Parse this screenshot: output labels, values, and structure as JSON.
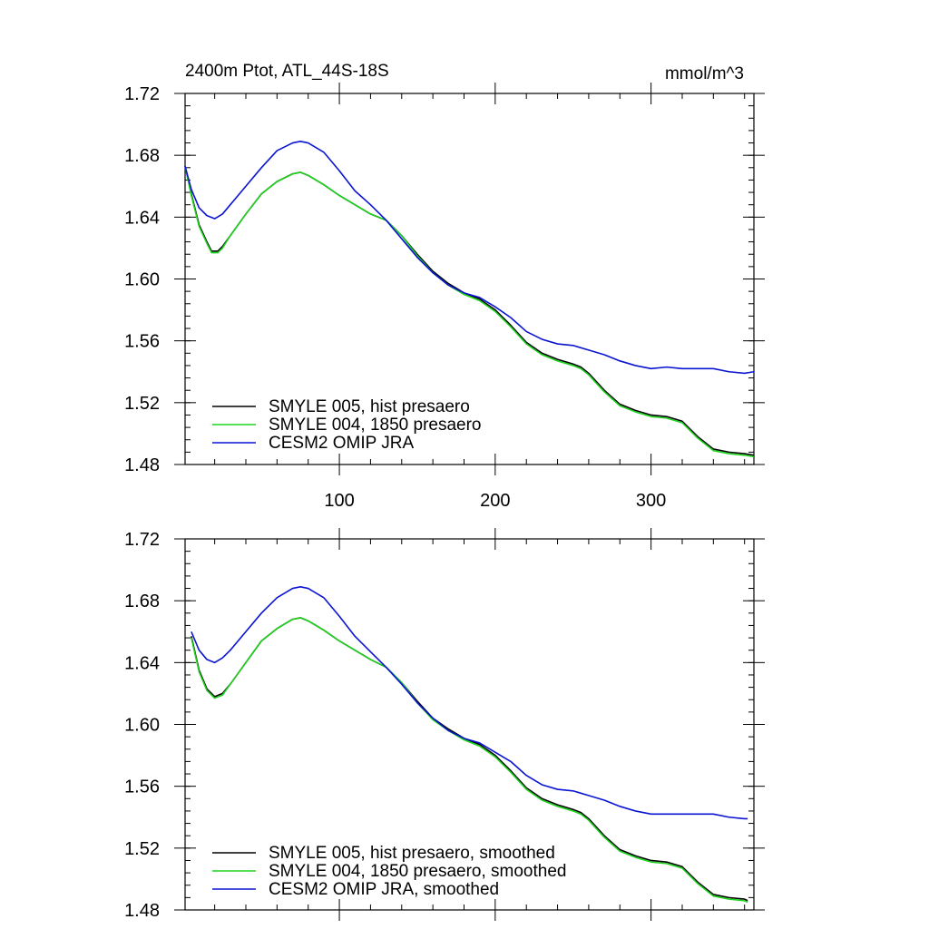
{
  "figure": {
    "title_left": "2400m Ptot, ATL_44S-18S",
    "title_right": "mmol/m^3"
  },
  "chart_data": [
    {
      "type": "line",
      "xlim": [
        1,
        366
      ],
      "ylim": [
        1.48,
        1.72
      ],
      "x_ticks": [
        100,
        200,
        300
      ],
      "x_tick_labels": [
        "100",
        "200",
        "300"
      ],
      "y_ticks": [
        1.48,
        1.52,
        1.56,
        1.6,
        1.64,
        1.68,
        1.72
      ],
      "y_tick_labels": [
        "1.48",
        "1.52",
        "1.56",
        "1.60",
        "1.64",
        "1.68",
        "1.72"
      ],
      "grid": false,
      "legend": "bottom-left",
      "series": [
        {
          "name": "SMYLE 005, hist presaero",
          "color": "#000000",
          "x": [
            1,
            5,
            10,
            15,
            18,
            22,
            25,
            30,
            40,
            50,
            60,
            70,
            75,
            80,
            90,
            100,
            110,
            120,
            130,
            140,
            150,
            160,
            170,
            180,
            190,
            200,
            210,
            220,
            230,
            240,
            250,
            255,
            260,
            270,
            280,
            290,
            300,
            310,
            320,
            330,
            340,
            350,
            360,
            366
          ],
          "y": [
            1.673,
            1.655,
            1.635,
            1.624,
            1.618,
            1.618,
            1.621,
            1.628,
            1.642,
            1.655,
            1.663,
            1.668,
            1.669,
            1.667,
            1.661,
            1.654,
            1.648,
            1.642,
            1.638,
            1.628,
            1.616,
            1.605,
            1.597,
            1.591,
            1.587,
            1.58,
            1.57,
            1.559,
            1.552,
            1.548,
            1.545,
            1.543,
            1.539,
            1.528,
            1.519,
            1.515,
            1.512,
            1.511,
            1.508,
            1.498,
            1.49,
            1.488,
            1.487,
            1.486
          ]
        },
        {
          "name": "SMYLE 004, 1850 presaero",
          "color": "#1ed31e",
          "x": [
            1,
            5,
            10,
            15,
            18,
            22,
            25,
            30,
            40,
            50,
            60,
            70,
            75,
            80,
            90,
            100,
            110,
            120,
            130,
            140,
            150,
            160,
            170,
            180,
            190,
            200,
            210,
            220,
            230,
            240,
            250,
            255,
            260,
            270,
            280,
            290,
            300,
            310,
            320,
            330,
            340,
            350,
            360,
            366
          ],
          "y": [
            1.673,
            1.654,
            1.634,
            1.623,
            1.617,
            1.617,
            1.62,
            1.628,
            1.642,
            1.655,
            1.663,
            1.668,
            1.669,
            1.667,
            1.661,
            1.654,
            1.648,
            1.642,
            1.638,
            1.628,
            1.615,
            1.604,
            1.596,
            1.59,
            1.586,
            1.579,
            1.569,
            1.558,
            1.551,
            1.547,
            1.544,
            1.542,
            1.538,
            1.527,
            1.518,
            1.514,
            1.511,
            1.51,
            1.507,
            1.497,
            1.489,
            1.487,
            1.486,
            1.485
          ]
        },
        {
          "name": "CESM2 OMIP JRA",
          "color": "#0a14d2",
          "x": [
            1,
            5,
            10,
            15,
            20,
            25,
            30,
            40,
            50,
            60,
            70,
            75,
            80,
            90,
            100,
            110,
            120,
            130,
            140,
            150,
            160,
            170,
            180,
            190,
            200,
            210,
            220,
            230,
            240,
            250,
            260,
            270,
            280,
            290,
            300,
            310,
            320,
            330,
            340,
            350,
            360,
            366
          ],
          "y": [
            1.673,
            1.658,
            1.646,
            1.641,
            1.639,
            1.642,
            1.648,
            1.66,
            1.672,
            1.683,
            1.688,
            1.689,
            1.688,
            1.682,
            1.67,
            1.657,
            1.648,
            1.638,
            1.626,
            1.614,
            1.604,
            1.596,
            1.591,
            1.588,
            1.582,
            1.575,
            1.566,
            1.561,
            1.558,
            1.557,
            1.554,
            1.551,
            1.547,
            1.544,
            1.542,
            1.543,
            1.542,
            1.542,
            1.542,
            1.54,
            1.539,
            1.54
          ]
        }
      ]
    },
    {
      "type": "line",
      "xlim": [
        1,
        366
      ],
      "ylim": [
        1.48,
        1.72
      ],
      "x_ticks": [
        100,
        200,
        300
      ],
      "x_tick_labels": [
        "",
        "",
        ""
      ],
      "y_ticks": [
        1.48,
        1.52,
        1.56,
        1.6,
        1.64,
        1.68,
        1.72
      ],
      "y_tick_labels": [
        "1.48",
        "1.52",
        "1.56",
        "1.60",
        "1.64",
        "1.68",
        "1.72"
      ],
      "grid": false,
      "legend": "bottom-left",
      "series": [
        {
          "name": "SMYLE 005, hist presaero, smoothed",
          "color": "#000000",
          "x": [
            5,
            10,
            15,
            20,
            25,
            30,
            40,
            50,
            60,
            70,
            75,
            80,
            90,
            100,
            110,
            120,
            130,
            140,
            150,
            160,
            170,
            180,
            190,
            200,
            210,
            220,
            230,
            240,
            250,
            255,
            260,
            270,
            280,
            290,
            300,
            310,
            320,
            330,
            340,
            350,
            360,
            362
          ],
          "y": [
            1.657,
            1.635,
            1.623,
            1.618,
            1.62,
            1.626,
            1.64,
            1.654,
            1.662,
            1.668,
            1.669,
            1.667,
            1.661,
            1.654,
            1.648,
            1.642,
            1.637,
            1.627,
            1.615,
            1.604,
            1.597,
            1.591,
            1.587,
            1.58,
            1.57,
            1.559,
            1.552,
            1.548,
            1.545,
            1.543,
            1.539,
            1.528,
            1.519,
            1.515,
            1.512,
            1.511,
            1.508,
            1.498,
            1.49,
            1.488,
            1.487,
            1.486
          ]
        },
        {
          "name": "SMYLE 004, 1850 presaero, smoothed",
          "color": "#1ed31e",
          "x": [
            5,
            10,
            15,
            20,
            25,
            30,
            40,
            50,
            60,
            70,
            75,
            80,
            90,
            100,
            110,
            120,
            130,
            140,
            150,
            160,
            170,
            180,
            190,
            200,
            210,
            220,
            230,
            240,
            250,
            255,
            260,
            270,
            280,
            290,
            300,
            310,
            320,
            330,
            340,
            350,
            360,
            362
          ],
          "y": [
            1.656,
            1.634,
            1.622,
            1.617,
            1.619,
            1.626,
            1.64,
            1.654,
            1.662,
            1.668,
            1.669,
            1.667,
            1.661,
            1.654,
            1.648,
            1.642,
            1.637,
            1.627,
            1.614,
            1.603,
            1.596,
            1.59,
            1.586,
            1.579,
            1.569,
            1.558,
            1.551,
            1.547,
            1.544,
            1.542,
            1.538,
            1.527,
            1.518,
            1.514,
            1.511,
            1.51,
            1.507,
            1.497,
            1.489,
            1.487,
            1.486,
            1.485
          ]
        },
        {
          "name": "CESM2 OMIP JRA, smoothed",
          "color": "#0a14d2",
          "x": [
            5,
            10,
            15,
            20,
            25,
            30,
            40,
            50,
            60,
            70,
            75,
            80,
            90,
            100,
            110,
            120,
            130,
            140,
            150,
            160,
            170,
            180,
            190,
            200,
            210,
            220,
            230,
            240,
            250,
            260,
            270,
            280,
            290,
            300,
            310,
            320,
            330,
            340,
            350,
            360,
            362
          ],
          "y": [
            1.66,
            1.648,
            1.642,
            1.64,
            1.643,
            1.648,
            1.66,
            1.672,
            1.682,
            1.688,
            1.689,
            1.688,
            1.682,
            1.67,
            1.657,
            1.647,
            1.637,
            1.626,
            1.614,
            1.604,
            1.596,
            1.591,
            1.588,
            1.582,
            1.576,
            1.567,
            1.561,
            1.558,
            1.557,
            1.554,
            1.551,
            1.547,
            1.544,
            1.542,
            1.542,
            1.542,
            1.542,
            1.542,
            1.54,
            1.539,
            1.539
          ]
        }
      ]
    }
  ]
}
